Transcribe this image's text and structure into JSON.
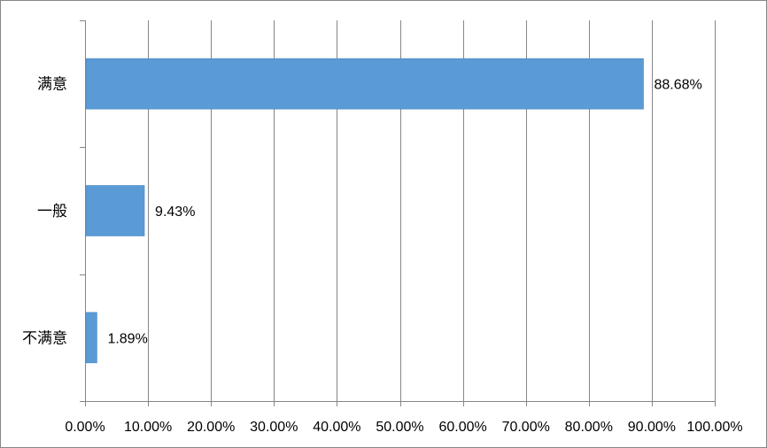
{
  "chart_data": {
    "type": "bar",
    "orientation": "horizontal",
    "categories": [
      "满意",
      "一般",
      "不满意"
    ],
    "values": [
      88.68,
      9.43,
      1.89
    ],
    "data_labels": [
      "88.68%",
      "9.43%",
      "1.89%"
    ],
    "xlim": [
      0,
      100
    ],
    "x_ticks": [
      0,
      10,
      20,
      30,
      40,
      50,
      60,
      70,
      80,
      90,
      100
    ],
    "x_tick_labels": [
      "0.00%",
      "10.00%",
      "20.00%",
      "30.00%",
      "40.00%",
      "50.00%",
      "60.00%",
      "70.00%",
      "80.00%",
      "90.00%",
      "100.00%"
    ],
    "grid": "vertical",
    "legend": "none",
    "bar_color": "#5B9BD5",
    "grid_color": "#868686",
    "title": "",
    "xlabel": "",
    "ylabel": ""
  }
}
